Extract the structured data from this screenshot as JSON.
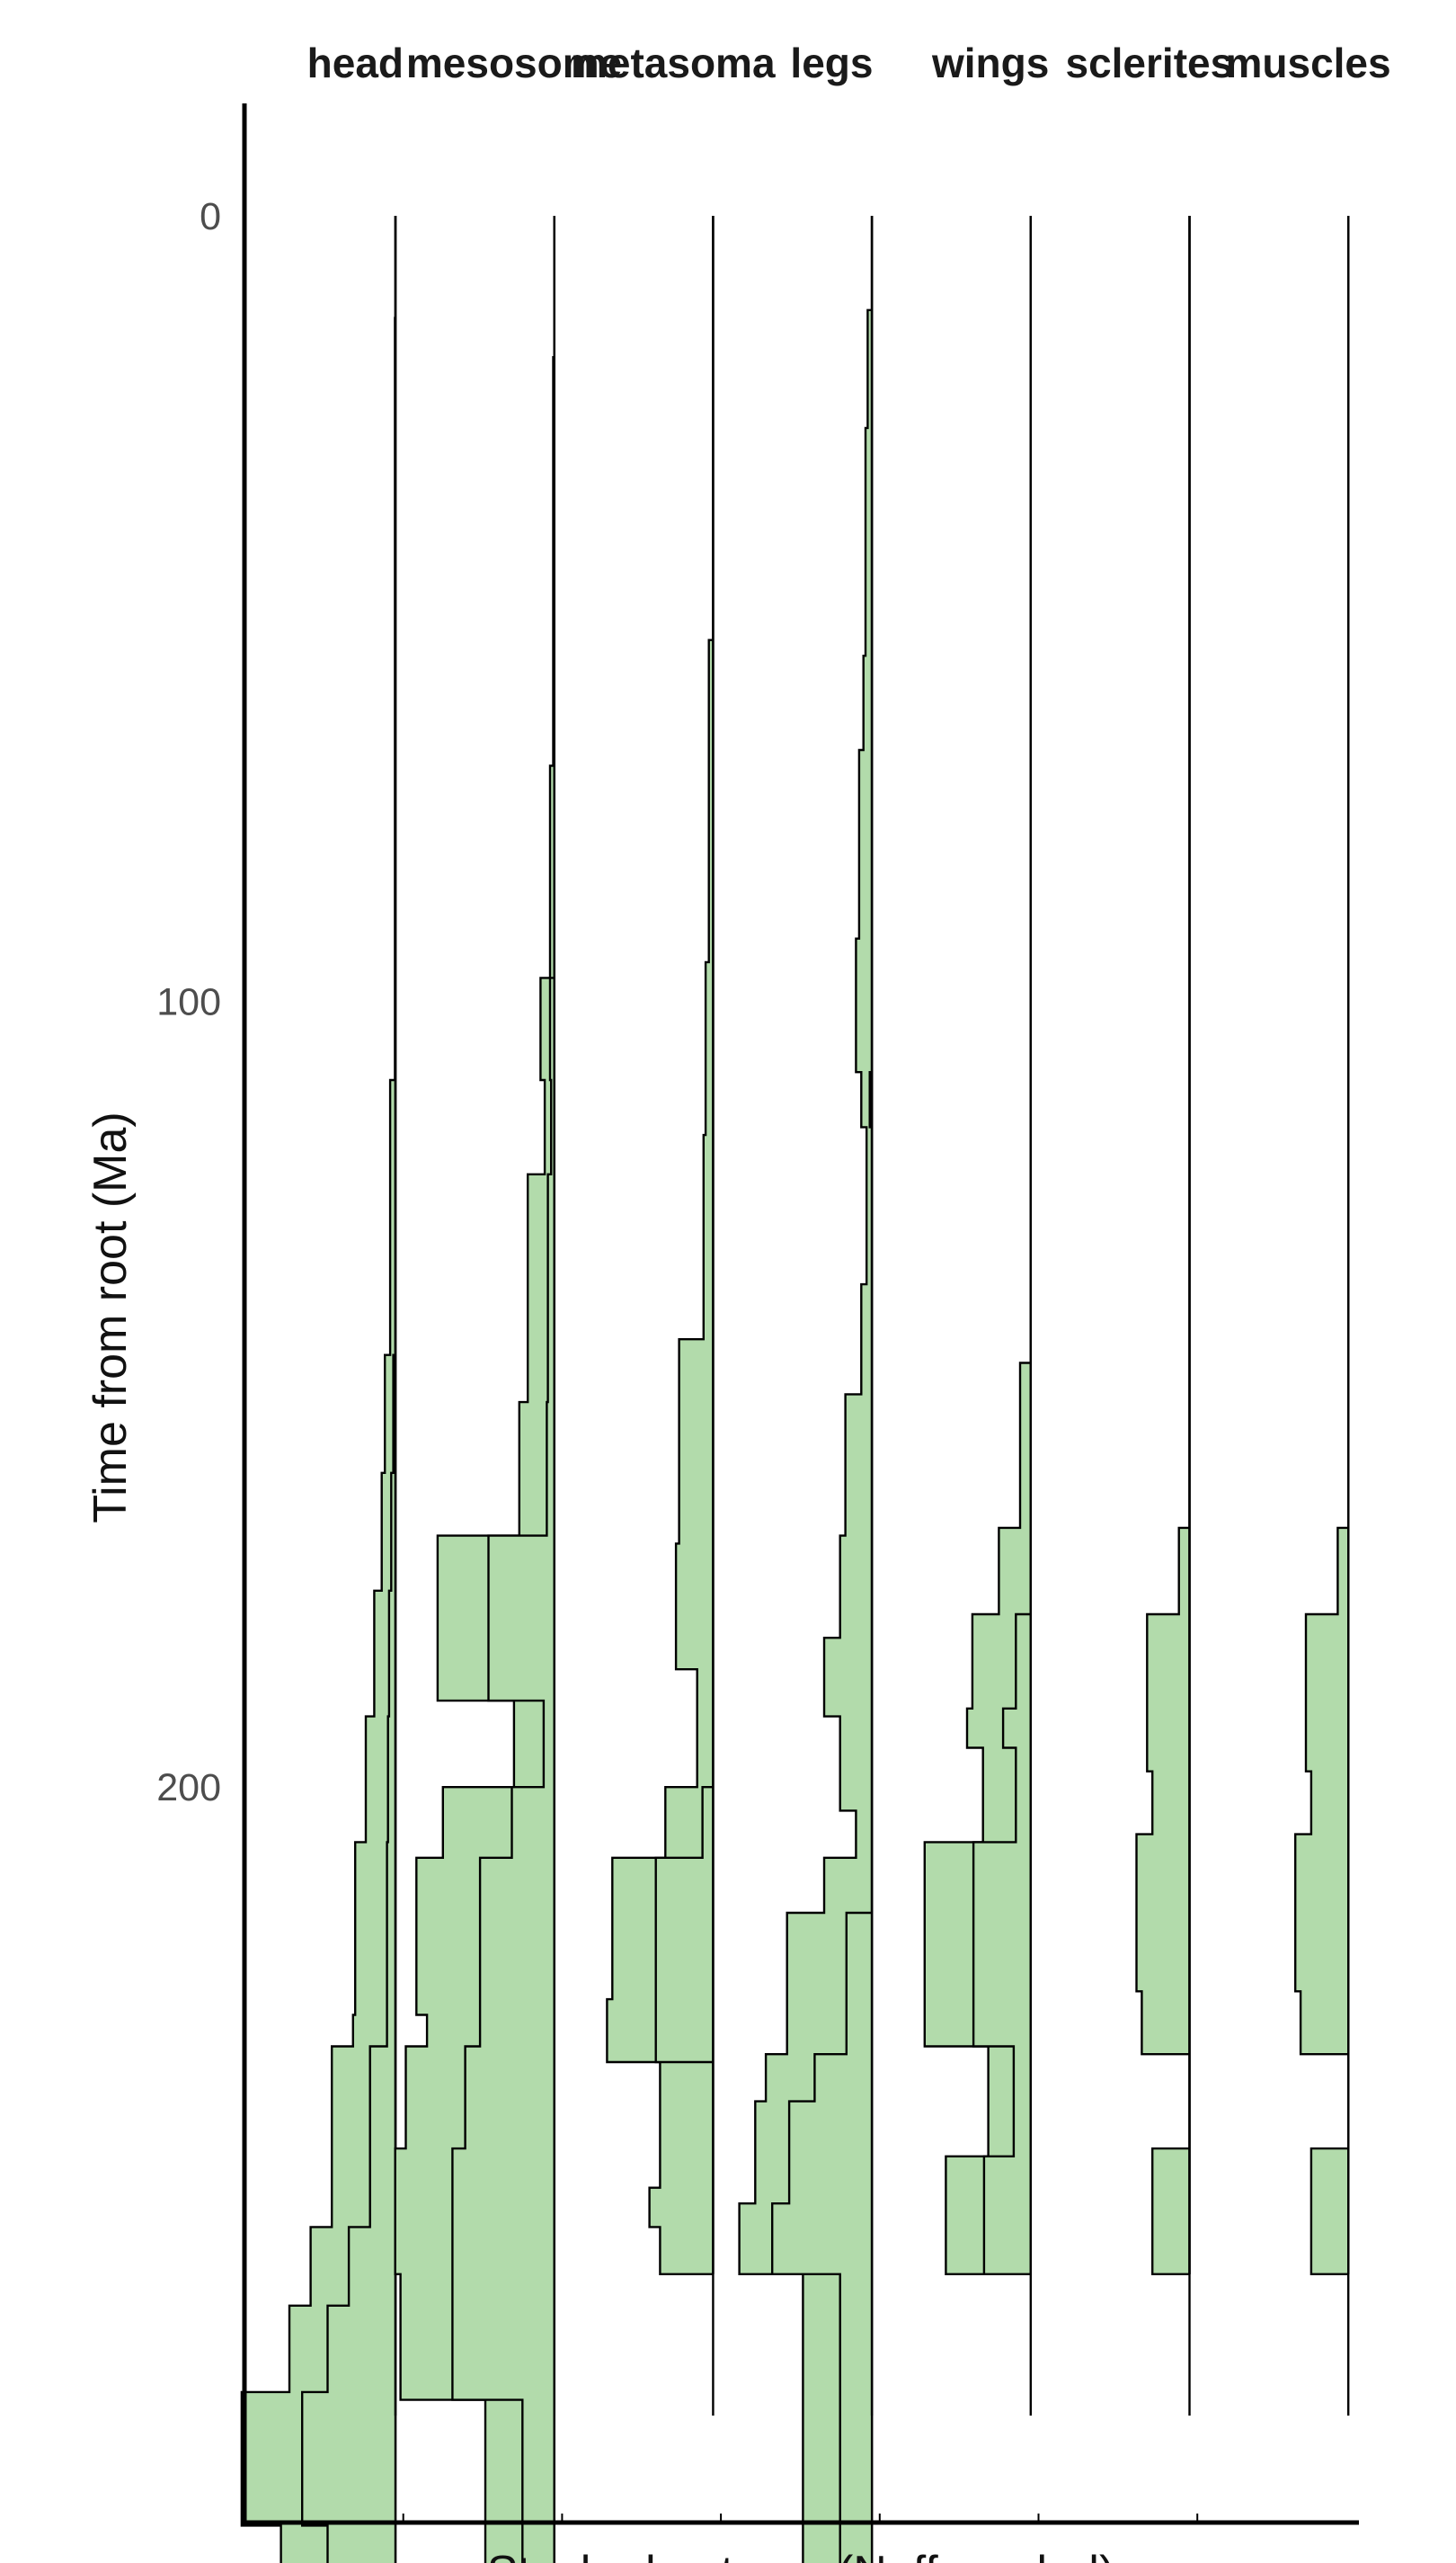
{
  "chart_data": {
    "type": "area",
    "orientation": "vertical-stacked-step",
    "xlabel": "Stacked entropy (Neff_scaled)",
    "ylabel": "Time from root (Ma)",
    "y_reversed": true,
    "ylim": [
      -14,
      302
    ],
    "y_ticks": [
      0,
      100,
      200
    ],
    "y_tick_labels": [
      "0",
      "100",
      "200"
    ],
    "grid": false,
    "legend": "none",
    "fill_color": "#b2dbab",
    "line_color": "#000000",
    "panels": [
      {
        "name": "head",
        "rendered_to": 280,
        "steps": [
          [
            0,
            0,
            0
          ],
          [
            13,
            0.05,
            0
          ],
          [
            110,
            0.5,
            0
          ],
          [
            145,
            1.0,
            0.2
          ],
          [
            160,
            1.3,
            0.4
          ],
          [
            175,
            2.0,
            0.6
          ],
          [
            191,
            2.8,
            0.7
          ],
          [
            207,
            3.8,
            0.8
          ],
          [
            229,
            4.0,
            0.8
          ],
          [
            233,
            6.0,
            2.4
          ],
          [
            256,
            8.0,
            4.4
          ],
          [
            266,
            10.0,
            6.4
          ],
          [
            277,
            14.5,
            8.8
          ],
          [
            294,
            10.8,
            6.4
          ],
          [
            299,
            0,
            0
          ]
        ]
      },
      {
        "name": "mesosome",
        "rendered_to": 280,
        "steps": [
          [
            0,
            0,
            0
          ],
          [
            18,
            0.1,
            0
          ],
          [
            70,
            0.4,
            0
          ],
          [
            97,
            1.3,
            0.4
          ],
          [
            110,
            0.9,
            0.3
          ],
          [
            122,
            2.5,
            0.6
          ],
          [
            151,
            3.3,
            0.7
          ],
          [
            168,
            11.0,
            6.2
          ],
          [
            189,
            3.8,
            1.0
          ],
          [
            200,
            10.5,
            4.0
          ],
          [
            209,
            13.0,
            7.0
          ],
          [
            229,
            12.0,
            7.0
          ],
          [
            233,
            14.0,
            8.4
          ],
          [
            246,
            15.0,
            9.6
          ],
          [
            262,
            14.5,
            9.6
          ],
          [
            278,
            6.5,
            3.0
          ],
          [
            286,
            6.5,
            3.0
          ],
          [
            299,
            0,
            0
          ]
        ]
      },
      {
        "name": "metasoma",
        "rendered_to": 280,
        "steps": [
          [
            0,
            0,
            0
          ],
          [
            54,
            0.4,
            0
          ],
          [
            95,
            0.7,
            0
          ],
          [
            117,
            0.9,
            0
          ],
          [
            143,
            3.2,
            0
          ],
          [
            169,
            3.5,
            0
          ],
          [
            185,
            1.5,
            0
          ],
          [
            200,
            4.5,
            1.0
          ],
          [
            209,
            9.5,
            5.4
          ],
          [
            227,
            10.0,
            5.4
          ],
          [
            235,
            5.0,
            0
          ],
          [
            251,
            6.0,
            0
          ],
          [
            256,
            5.0,
            0
          ],
          [
            262,
            0,
            0
          ]
        ]
      },
      {
        "name": "legs",
        "rendered_to": 280,
        "steps": [
          [
            0,
            0,
            0
          ],
          [
            12,
            0.4,
            0
          ],
          [
            27,
            0.6,
            0
          ],
          [
            56,
            0.8,
            0
          ],
          [
            68,
            1.2,
            0
          ],
          [
            92,
            1.5,
            0
          ],
          [
            109,
            1.0,
            0.2
          ],
          [
            116,
            0.5,
            0
          ],
          [
            136,
            1.0,
            0
          ],
          [
            150,
            2.5,
            0
          ],
          [
            168,
            3.0,
            0
          ],
          [
            181,
            4.5,
            0
          ],
          [
            191,
            3.0,
            0
          ],
          [
            203,
            1.5,
            0
          ],
          [
            209,
            4.5,
            0
          ],
          [
            216,
            8.0,
            2.4
          ],
          [
            234,
            10.0,
            5.4
          ],
          [
            240,
            11.0,
            7.8
          ],
          [
            253,
            12.5,
            9.4
          ],
          [
            262,
            6.5,
            3.0
          ],
          [
            285,
            6.5,
            3.0
          ],
          [
            299,
            0,
            0
          ]
        ]
      },
      {
        "name": "wings",
        "rendered_to": 280,
        "steps": [
          [
            0,
            0,
            0
          ],
          [
            146,
            1.0,
            0
          ],
          [
            167,
            3.0,
            0
          ],
          [
            178,
            5.5,
            1.4
          ],
          [
            190,
            6.0,
            2.6
          ],
          [
            195,
            4.5,
            1.4
          ],
          [
            207,
            10.0,
            5.4
          ],
          [
            229,
            10.0,
            5.4
          ],
          [
            233,
            4.0,
            1.6
          ],
          [
            247,
            8.0,
            4.4
          ],
          [
            262,
            0,
            0
          ]
        ]
      },
      {
        "name": "sclerites",
        "rendered_to": 280,
        "steps": [
          [
            0,
            0,
            0
          ],
          [
            167,
            1.0,
            0
          ],
          [
            178,
            4.0,
            0
          ],
          [
            198,
            3.5,
            0
          ],
          [
            206,
            5.0,
            0
          ],
          [
            226,
            4.5,
            0
          ],
          [
            234,
            0,
            0
          ],
          [
            246,
            3.5,
            0
          ],
          [
            262,
            0,
            0
          ]
        ]
      },
      {
        "name": "muscles",
        "rendered_to": 280,
        "steps": [
          [
            0,
            0,
            0
          ],
          [
            167,
            1.0,
            0
          ],
          [
            178,
            4.0,
            0
          ],
          [
            198,
            3.5,
            0
          ],
          [
            206,
            5.0,
            0
          ],
          [
            226,
            4.5,
            0
          ],
          [
            234,
            0,
            0
          ],
          [
            246,
            3.5,
            0
          ],
          [
            262,
            0,
            0
          ]
        ]
      }
    ]
  }
}
